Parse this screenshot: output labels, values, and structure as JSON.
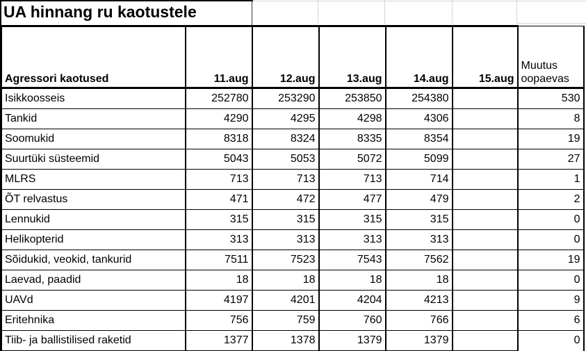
{
  "title": "UA hinnang ru kaotustele",
  "chart_data": {
    "type": "table",
    "title": "UA hinnang ru kaotustele",
    "columns": [
      "Agressori kaotused",
      "11.aug",
      "12.aug",
      "13.aug",
      "14.aug",
      "15.aug",
      "Muutus oopaevas"
    ],
    "header": {
      "label": "Agressori kaotused",
      "dates": [
        "11.aug",
        "12.aug",
        "13.aug",
        "14.aug",
        "15.aug"
      ],
      "change_line1": "Muutus",
      "change_line2": "oopaevas"
    },
    "rows": [
      {
        "label": "Isikkoosseis",
        "values": [
          "252780",
          "253290",
          "253850",
          "254380",
          "",
          "530"
        ]
      },
      {
        "label": "Tankid",
        "values": [
          "4290",
          "4295",
          "4298",
          "4306",
          "",
          "8"
        ]
      },
      {
        "label": "Soomukid",
        "values": [
          "8318",
          "8324",
          "8335",
          "8354",
          "",
          "19"
        ]
      },
      {
        "label": "Suurtüki süsteemid",
        "values": [
          "5043",
          "5053",
          "5072",
          "5099",
          "",
          "27"
        ]
      },
      {
        "label": "MLRS",
        "values": [
          "713",
          "713",
          "713",
          "714",
          "",
          "1"
        ]
      },
      {
        "label": "ÕT relvastus",
        "values": [
          "471",
          "472",
          "477",
          "479",
          "",
          "2"
        ]
      },
      {
        "label": "Lennukid",
        "values": [
          "315",
          "315",
          "315",
          "315",
          "",
          "0"
        ]
      },
      {
        "label": "Helikopterid",
        "values": [
          "313",
          "313",
          "313",
          "313",
          "",
          "0"
        ]
      },
      {
        "label": "Sõidukid, veokid, tankurid",
        "values": [
          "7511",
          "7523",
          "7543",
          "7562",
          "",
          "19"
        ]
      },
      {
        "label": "Laevad, paadid",
        "values": [
          "18",
          "18",
          "18",
          "18",
          "",
          "0"
        ]
      },
      {
        "label": "UAVd",
        "values": [
          "4197",
          "4201",
          "4204",
          "4213",
          "",
          "9"
        ]
      },
      {
        "label": "Eritehnika",
        "values": [
          "756",
          "759",
          "760",
          "766",
          "",
          "6"
        ]
      },
      {
        "label": "Tiib- ja ballistilised raketid",
        "values": [
          "1377",
          "1378",
          "1379",
          "1379",
          "",
          "0"
        ]
      }
    ]
  },
  "colors": {
    "border": "#000000",
    "text": "#000000",
    "background": "#ffffff",
    "gridline": "#d6d6d6"
  }
}
